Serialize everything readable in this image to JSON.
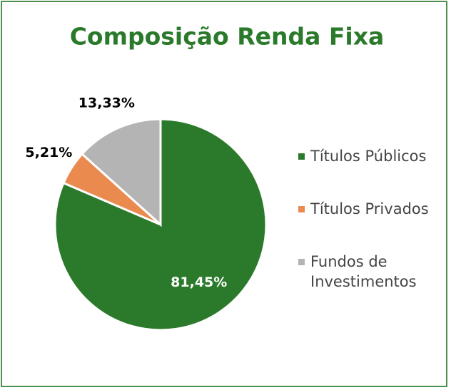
{
  "chart_data": {
    "type": "pie",
    "title": "Composição Renda Fixa",
    "series": [
      {
        "name": "Títulos Públicos",
        "color": "#2b7a2b",
        "values": [
          81.45
        ],
        "value_labels": [
          "81,45%"
        ]
      },
      {
        "name": "Títulos Privados",
        "color": "#ea8a4f",
        "values": [
          5.21
        ],
        "value_labels": [
          "5,21%"
        ]
      },
      {
        "name": "Fundos de Investimentos",
        "color": "#b4b4b4",
        "values": [
          13.33
        ],
        "value_labels": [
          "13,33%"
        ]
      }
    ],
    "legend": "right"
  }
}
